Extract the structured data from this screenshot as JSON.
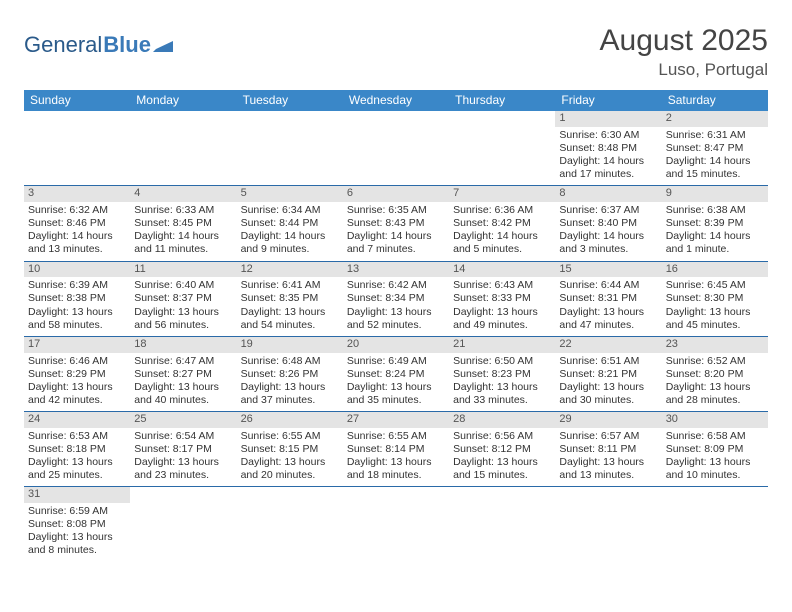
{
  "brand": {
    "part1": "General",
    "part2": "Blue"
  },
  "title": "August 2025",
  "location": "Luso, Portugal",
  "colors": {
    "header_bg": "#3a87c8",
    "header_text": "#ffffff",
    "row_divider": "#2a6aa8",
    "daynum_bg": "#e4e4e4",
    "text": "#333333",
    "brand_primary": "#2a5a8a",
    "brand_accent": "#3a7ab8"
  },
  "typography": {
    "title_fontsize": 30,
    "location_fontsize": 17,
    "logo_fontsize": 22,
    "dayhead_fontsize": 12,
    "cell_fontsize": 10.5
  },
  "day_headers": [
    "Sunday",
    "Monday",
    "Tuesday",
    "Wednesday",
    "Thursday",
    "Friday",
    "Saturday"
  ],
  "weeks": [
    [
      {
        "empty": true
      },
      {
        "empty": true
      },
      {
        "empty": true
      },
      {
        "empty": true
      },
      {
        "empty": true
      },
      {
        "num": "1",
        "sunrise": "Sunrise: 6:30 AM",
        "sunset": "Sunset: 8:48 PM",
        "daylight": "Daylight: 14 hours and 17 minutes."
      },
      {
        "num": "2",
        "sunrise": "Sunrise: 6:31 AM",
        "sunset": "Sunset: 8:47 PM",
        "daylight": "Daylight: 14 hours and 15 minutes."
      }
    ],
    [
      {
        "num": "3",
        "sunrise": "Sunrise: 6:32 AM",
        "sunset": "Sunset: 8:46 PM",
        "daylight": "Daylight: 14 hours and 13 minutes."
      },
      {
        "num": "4",
        "sunrise": "Sunrise: 6:33 AM",
        "sunset": "Sunset: 8:45 PM",
        "daylight": "Daylight: 14 hours and 11 minutes."
      },
      {
        "num": "5",
        "sunrise": "Sunrise: 6:34 AM",
        "sunset": "Sunset: 8:44 PM",
        "daylight": "Daylight: 14 hours and 9 minutes."
      },
      {
        "num": "6",
        "sunrise": "Sunrise: 6:35 AM",
        "sunset": "Sunset: 8:43 PM",
        "daylight": "Daylight: 14 hours and 7 minutes."
      },
      {
        "num": "7",
        "sunrise": "Sunrise: 6:36 AM",
        "sunset": "Sunset: 8:42 PM",
        "daylight": "Daylight: 14 hours and 5 minutes."
      },
      {
        "num": "8",
        "sunrise": "Sunrise: 6:37 AM",
        "sunset": "Sunset: 8:40 PM",
        "daylight": "Daylight: 14 hours and 3 minutes."
      },
      {
        "num": "9",
        "sunrise": "Sunrise: 6:38 AM",
        "sunset": "Sunset: 8:39 PM",
        "daylight": "Daylight: 14 hours and 1 minute."
      }
    ],
    [
      {
        "num": "10",
        "sunrise": "Sunrise: 6:39 AM",
        "sunset": "Sunset: 8:38 PM",
        "daylight": "Daylight: 13 hours and 58 minutes."
      },
      {
        "num": "11",
        "sunrise": "Sunrise: 6:40 AM",
        "sunset": "Sunset: 8:37 PM",
        "daylight": "Daylight: 13 hours and 56 minutes."
      },
      {
        "num": "12",
        "sunrise": "Sunrise: 6:41 AM",
        "sunset": "Sunset: 8:35 PM",
        "daylight": "Daylight: 13 hours and 54 minutes."
      },
      {
        "num": "13",
        "sunrise": "Sunrise: 6:42 AM",
        "sunset": "Sunset: 8:34 PM",
        "daylight": "Daylight: 13 hours and 52 minutes."
      },
      {
        "num": "14",
        "sunrise": "Sunrise: 6:43 AM",
        "sunset": "Sunset: 8:33 PM",
        "daylight": "Daylight: 13 hours and 49 minutes."
      },
      {
        "num": "15",
        "sunrise": "Sunrise: 6:44 AM",
        "sunset": "Sunset: 8:31 PM",
        "daylight": "Daylight: 13 hours and 47 minutes."
      },
      {
        "num": "16",
        "sunrise": "Sunrise: 6:45 AM",
        "sunset": "Sunset: 8:30 PM",
        "daylight": "Daylight: 13 hours and 45 minutes."
      }
    ],
    [
      {
        "num": "17",
        "sunrise": "Sunrise: 6:46 AM",
        "sunset": "Sunset: 8:29 PM",
        "daylight": "Daylight: 13 hours and 42 minutes."
      },
      {
        "num": "18",
        "sunrise": "Sunrise: 6:47 AM",
        "sunset": "Sunset: 8:27 PM",
        "daylight": "Daylight: 13 hours and 40 minutes."
      },
      {
        "num": "19",
        "sunrise": "Sunrise: 6:48 AM",
        "sunset": "Sunset: 8:26 PM",
        "daylight": "Daylight: 13 hours and 37 minutes."
      },
      {
        "num": "20",
        "sunrise": "Sunrise: 6:49 AM",
        "sunset": "Sunset: 8:24 PM",
        "daylight": "Daylight: 13 hours and 35 minutes."
      },
      {
        "num": "21",
        "sunrise": "Sunrise: 6:50 AM",
        "sunset": "Sunset: 8:23 PM",
        "daylight": "Daylight: 13 hours and 33 minutes."
      },
      {
        "num": "22",
        "sunrise": "Sunrise: 6:51 AM",
        "sunset": "Sunset: 8:21 PM",
        "daylight": "Daylight: 13 hours and 30 minutes."
      },
      {
        "num": "23",
        "sunrise": "Sunrise: 6:52 AM",
        "sunset": "Sunset: 8:20 PM",
        "daylight": "Daylight: 13 hours and 28 minutes."
      }
    ],
    [
      {
        "num": "24",
        "sunrise": "Sunrise: 6:53 AM",
        "sunset": "Sunset: 8:18 PM",
        "daylight": "Daylight: 13 hours and 25 minutes."
      },
      {
        "num": "25",
        "sunrise": "Sunrise: 6:54 AM",
        "sunset": "Sunset: 8:17 PM",
        "daylight": "Daylight: 13 hours and 23 minutes."
      },
      {
        "num": "26",
        "sunrise": "Sunrise: 6:55 AM",
        "sunset": "Sunset: 8:15 PM",
        "daylight": "Daylight: 13 hours and 20 minutes."
      },
      {
        "num": "27",
        "sunrise": "Sunrise: 6:55 AM",
        "sunset": "Sunset: 8:14 PM",
        "daylight": "Daylight: 13 hours and 18 minutes."
      },
      {
        "num": "28",
        "sunrise": "Sunrise: 6:56 AM",
        "sunset": "Sunset: 8:12 PM",
        "daylight": "Daylight: 13 hours and 15 minutes."
      },
      {
        "num": "29",
        "sunrise": "Sunrise: 6:57 AM",
        "sunset": "Sunset: 8:11 PM",
        "daylight": "Daylight: 13 hours and 13 minutes."
      },
      {
        "num": "30",
        "sunrise": "Sunrise: 6:58 AM",
        "sunset": "Sunset: 8:09 PM",
        "daylight": "Daylight: 13 hours and 10 minutes."
      }
    ],
    [
      {
        "num": "31",
        "sunrise": "Sunrise: 6:59 AM",
        "sunset": "Sunset: 8:08 PM",
        "daylight": "Daylight: 13 hours and 8 minutes."
      },
      {
        "empty": true
      },
      {
        "empty": true
      },
      {
        "empty": true
      },
      {
        "empty": true
      },
      {
        "empty": true
      },
      {
        "empty": true
      }
    ]
  ]
}
